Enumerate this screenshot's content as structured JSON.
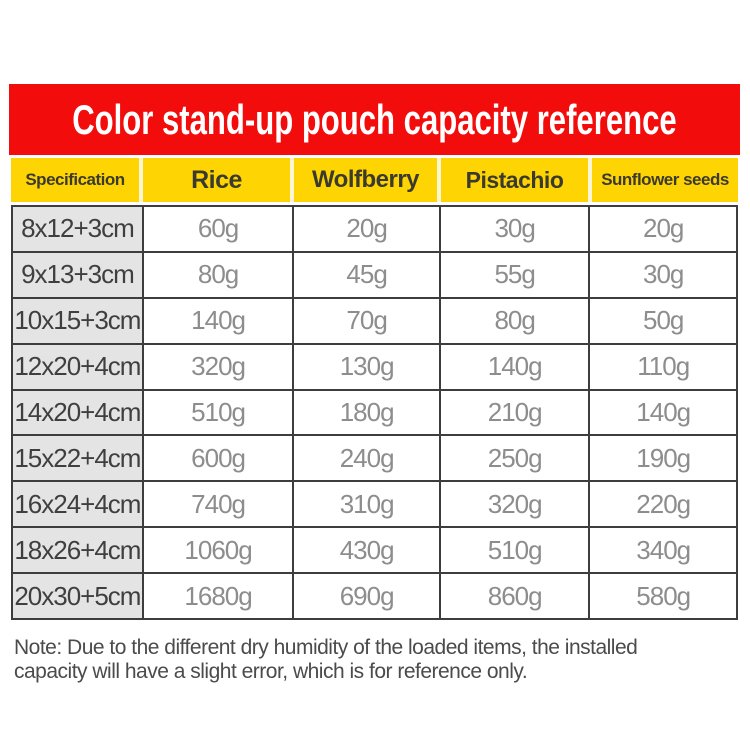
{
  "banner": {
    "title": "Color stand-up pouch capacity reference"
  },
  "chart_data": {
    "type": "table",
    "title": "Color stand-up pouch capacity reference",
    "columns": [
      "Specification",
      "Rice",
      "Wolfberry",
      "Pistachio",
      "Sunflower seeds"
    ],
    "rows": [
      {
        "spec": "8x12+3cm",
        "values": [
          "60g",
          "20g",
          "30g",
          "20g"
        ]
      },
      {
        "spec": "9x13+3cm",
        "values": [
          "80g",
          "45g",
          "55g",
          "30g"
        ]
      },
      {
        "spec": "10x15+3cm",
        "values": [
          "140g",
          "70g",
          "80g",
          "50g"
        ]
      },
      {
        "spec": "12x20+4cm",
        "values": [
          "320g",
          "130g",
          "140g",
          "110g"
        ]
      },
      {
        "spec": "14x20+4cm",
        "values": [
          "510g",
          "180g",
          "210g",
          "140g"
        ]
      },
      {
        "spec": "15x22+4cm",
        "values": [
          "600g",
          "240g",
          "250g",
          "190g"
        ]
      },
      {
        "spec": "16x24+4cm",
        "values": [
          "740g",
          "310g",
          "320g",
          "220g"
        ]
      },
      {
        "spec": "18x26+4cm",
        "values": [
          "1060g",
          "430g",
          "510g",
          "340g"
        ]
      },
      {
        "spec": "20x30+5cm",
        "values": [
          "1680g",
          "690g",
          "860g",
          "580g"
        ]
      }
    ],
    "units": "g"
  },
  "note": {
    "lines": [
      "Note: Due to the different dry humidity of the loaded items, the installed",
      "capacity will have a slight error, which is for reference only."
    ]
  },
  "colors": {
    "page_bg": "#ffffff",
    "banner_bg": "#f20c0c",
    "banner_text": "#ffffff",
    "header_bg": "#ffd403",
    "header_text": "#3b3a2e",
    "header_separator": "#fcf6d8",
    "spec_cell_bg": "#e4e4e4",
    "spec_text": "#3f3f3f",
    "value_text": "#8d8d8d",
    "grid_border": "#3d3d3d",
    "note_text": "#4b4b4b"
  }
}
